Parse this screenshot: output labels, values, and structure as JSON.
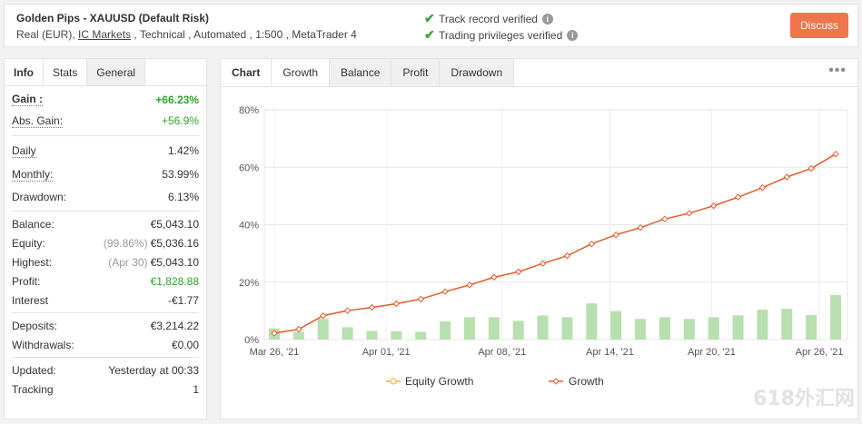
{
  "header": {
    "title": "Golden Pips - XAUUSD (Default Risk)",
    "sub_prefix": "Real (EUR), ",
    "broker": "IC Markets",
    "sub_suffix": " , Technical , Automated , 1:500 , MetaTrader 4",
    "verify1": "Track record verified",
    "verify2": "Trading privileges verified",
    "discuss": "Discuss"
  },
  "left_tabs": [
    "Info",
    "Stats",
    "General"
  ],
  "stats": {
    "gain_label": "Gain :",
    "gain": "+66.23%",
    "abs_gain_label": "Abs. Gain:",
    "abs_gain": "+56.9%",
    "daily_label": "Daily",
    "daily": "1.42%",
    "monthly_label": "Monthly:",
    "monthly": "53.99%",
    "drawdown_label": "Drawdown:",
    "drawdown": "6.13%",
    "balance_label": "Balance:",
    "balance": "€5,043.10",
    "equity_label": "Equity:",
    "equity_pct": "(99.86%)",
    "equity": "€5,036.16",
    "highest_label": "Highest:",
    "highest_date": "(Apr 30)",
    "highest": "€5,043.10",
    "profit_label": "Profit:",
    "profit": "€1,828.88",
    "interest_label": "Interest",
    "interest": "-€1.77",
    "deposits_label": "Deposits:",
    "deposits": "€3,214.22",
    "withdrawals_label": "Withdrawals:",
    "withdrawals": "€0.00",
    "updated_label": "Updated:",
    "updated": "Yesterday at 00:33",
    "tracking_label": "Tracking",
    "tracking": "1"
  },
  "chart_tabs": [
    "Chart",
    "Growth",
    "Balance",
    "Profit",
    "Drawdown"
  ],
  "chart_data": {
    "type": "line",
    "ylim": [
      0,
      80
    ],
    "yticks": [
      "0%",
      "20%",
      "40%",
      "60%",
      "80%"
    ],
    "xticks": [
      "Mar 26, '21",
      "Apr 01, '21",
      "Apr 08, '21",
      "Apr 14, '21",
      "Apr 20, '21",
      "Apr 26, '21"
    ],
    "legend": [
      "Equity Growth",
      "Growth"
    ],
    "colors": {
      "growth": "#e55b2d",
      "equity": "#f0b323",
      "bars": "#b8dfaf"
    },
    "growth": [
      2.2,
      3.6,
      8.3,
      10.1,
      11.2,
      12.5,
      14.1,
      16.7,
      19.0,
      21.7,
      23.6,
      26.5,
      29.2,
      33.3,
      36.5,
      39.0,
      42.0,
      44.0,
      46.6,
      49.6,
      52.9,
      56.6,
      59.6,
      64.6
    ],
    "daily_bars": [
      3.9,
      2.6,
      7.2,
      4.3,
      3.0,
      2.9,
      2.7,
      6.3,
      7.8,
      7.8,
      6.5,
      8.4,
      7.8,
      12.6,
      9.9,
      7.2,
      7.8,
      7.2,
      7.8,
      8.4,
      10.4,
      10.7,
      8.5,
      15.5
    ]
  },
  "watermark": "618外汇网"
}
